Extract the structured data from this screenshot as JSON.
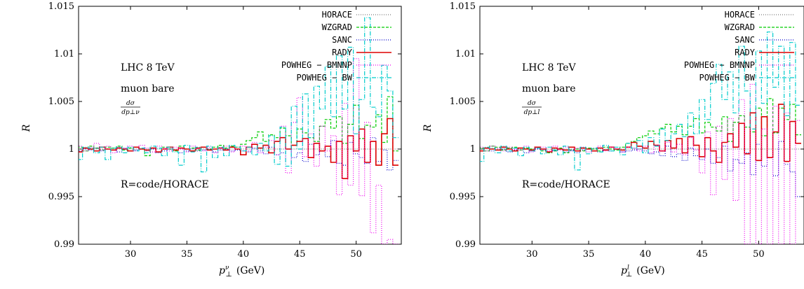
{
  "chart_data": [
    {
      "type": "line",
      "step": true,
      "xlabel": "p⊥ν (GeV)",
      "xlabel_main": "p",
      "xlabel_sub": "⊥",
      "xlabel_sup": "ν",
      "xlabel_unit": "(GeV)",
      "ylabel": "R",
      "xlim": [
        25.4,
        54
      ],
      "ylim": [
        0.99,
        1.015
      ],
      "xticks": [
        30,
        35,
        40,
        45,
        50
      ],
      "yticks": [
        0.99,
        0.995,
        1,
        1.005,
        1.01,
        1.015
      ],
      "ytick_labels": [
        "0.99",
        "0.995",
        "1",
        "1.005",
        "1.01",
        "1.015"
      ],
      "legend_position": "top-right",
      "annotations": {
        "line1": "LHC 8 TeV",
        "line2": "muon bare",
        "frac_num": "dσ",
        "frac_den": "dp⊥ν",
        "ratio": "R=code/HORACE"
      },
      "x": [
        25.5,
        26,
        26.5,
        27,
        27.5,
        28,
        28.5,
        29,
        29.5,
        30,
        30.5,
        31,
        31.5,
        32,
        32.5,
        33,
        33.5,
        34,
        34.5,
        35,
        35.5,
        36,
        36.5,
        37,
        37.5,
        38,
        38.5,
        39,
        39.5,
        40,
        40.5,
        41,
        41.5,
        42,
        42.5,
        43,
        43.5,
        44,
        44.5,
        45,
        45.5,
        46,
        46.5,
        47,
        47.5,
        48,
        48.5,
        49,
        49.5,
        50,
        50.5,
        51,
        51.5,
        52,
        52.5,
        53,
        53.5
      ],
      "series": [
        {
          "name": "HORACE",
          "color": "#7a7a7a",
          "dash": "1,2",
          "values": [
            1,
            1,
            1,
            1,
            1,
            1,
            1,
            1,
            1,
            1,
            1,
            1,
            1,
            1,
            1,
            1,
            1,
            1,
            1,
            1,
            1,
            1,
            1,
            1,
            1,
            1,
            1,
            1,
            1,
            1,
            1,
            1,
            1,
            1,
            1,
            1,
            1,
            1,
            1,
            1,
            1,
            1,
            1,
            1,
            1,
            1,
            1,
            1,
            1,
            1,
            1,
            1,
            1,
            1,
            1,
            1,
            1
          ]
        },
        {
          "name": "WZGRAD",
          "color": "#00cc00",
          "dash": "4,2",
          "values": [
            1.0002,
            0.9998,
            1.0003,
            1.0001,
            0.9999,
            1.0002,
            1.0001,
            1.0003,
            0.9999,
            1.0001,
            1.0002,
            1.0,
            0.9993,
            1.0001,
            0.9997,
            1.0002,
            1.0,
            0.9998,
            1.0003,
            1.0,
            1.0001,
            0.9999,
            1.0002,
            1.0,
            1.0002,
            1.0004,
            1.0001,
            1.0003,
            1.0002,
            1.0005,
            1.0009,
            1.0012,
            1.0018,
            1.0008,
            1.0015,
            1.0012,
            1.0022,
            1.0014,
            1.0004,
            1.0021,
            1.0017,
            1.0012,
            1.0008,
            1.0024,
            1.0031,
            1.0022,
            1.0034,
            1.0006,
            1.0026,
            1.0046,
            1.0011,
            1.0025,
            1.0023,
            1.0036,
            1.0007,
            1.0055,
            0.9998
          ]
        },
        {
          "name": "SANC",
          "color": "#0000cc",
          "dash": "1,2",
          "values": [
            0.9998,
            1.0,
            0.9999,
            1.0001,
            0.9998,
            1.0,
            0.9999,
            0.9997,
            1.0001,
            0.9998,
            0.9999,
            1.0,
            0.9998,
            1.0,
            0.9996,
            0.9998,
            1.0,
            0.9999,
            0.9996,
            0.9998,
            1.0,
            0.9998,
            0.9999,
            1.0,
            0.9997,
            0.9999,
            1.0,
            0.9998,
            0.9999,
            0.9998,
            0.9997,
            1.0001,
            0.9998,
            0.9995,
            1.0002,
            0.9994,
            0.9996,
            1.0,
            0.9991,
            0.9996,
            0.9987,
            1.0005,
            0.9994,
            0.9998,
            0.9992,
            1.0009,
            0.9985,
            0.9983,
            1.0007,
            0.9995,
            0.9991,
            0.9985,
            1.0012,
            0.9987,
            0.9999,
            0.9978,
            0.9988
          ]
        },
        {
          "name": "RADY",
          "color": "#dd0000",
          "dash": "",
          "values": [
            0.9997,
            1.0001,
            1.0,
            0.9998,
            1.0002,
            1.0,
            0.9999,
            1.0001,
            1.0,
            0.9998,
            1.0002,
            1.0,
            0.9999,
            1.0001,
            0.9997,
            1.0,
            1.0002,
            0.9999,
            1.0001,
            1.0,
            0.9998,
            1.0001,
            1.0002,
            0.9999,
            1.0,
            1.0001,
            0.9999,
            1.0002,
            1.0,
            0.9994,
            1.0002,
            1.0005,
            1.0001,
            1.0004,
            0.9996,
            1.0008,
            1.0012,
            1.0,
            1.0004,
            1.0008,
            1.0011,
            0.9991,
            1.0006,
            0.9998,
            1.0003,
            0.9986,
            1.0008,
            0.9969,
            1.0014,
            0.9998,
            1.0021,
            0.9986,
            1.0008,
            0.9983,
            1.0016,
            1.0032,
            0.9983
          ]
        },
        {
          "name": "POWHEG − BMNNP",
          "color": "#ee00ee",
          "dash": "1,2",
          "values": [
            1.0003,
            0.9998,
            1.0002,
            1.0006,
            0.9999,
            1.0003,
            0.9996,
            1.0002,
            1.0,
            1.0003,
            0.9998,
            1.0004,
            1.0001,
            0.9997,
            1.0003,
            1.0001,
            0.9998,
            1.0002,
            1.0,
            0.9997,
            1.0003,
            1.0,
            0.9998,
            1.0002,
            0.9996,
            1.0001,
            1.0003,
            0.9997,
            1.0002,
            1.0003,
            0.9998,
            1.0007,
            0.9996,
            1.0002,
            1.0009,
            0.9994,
            1.0024,
            0.9975,
            1.0028,
            1.0054,
            0.9992,
            1.0016,
            0.9982,
            1.0024,
            0.9998,
            1.0014,
            0.9952,
            1.0048,
            0.9962,
            1.0095,
            0.9951,
            1.0028,
            0.9912,
            0.9962,
            0.99,
            0.9905,
            0.99
          ]
        },
        {
          "name": "POWHEG − BW",
          "color": "#00cccc",
          "dash": "6,2,1,2",
          "values": [
            0.9989,
            1.0002,
            1.0001,
            0.9996,
            1.0002,
            0.9989,
            1.0001,
            1.0002,
            0.9996,
            1.0002,
            0.9998,
            1.0001,
            0.9996,
            1.0003,
            1.0001,
            0.9993,
            1.0002,
            0.9997,
            0.9983,
            1.0004,
            0.9997,
            1.0002,
            0.9976,
            1.0003,
            0.9991,
            1.0002,
            0.9993,
            1.0004,
            1.0002,
            0.9998,
            1.0002,
            0.9994,
            1.0006,
            0.9998,
            1.0014,
            0.9984,
            1.0023,
            0.9982,
            1.0045,
            1.0,
            1.0058,
            1.0012,
            1.0066,
            1.0042,
            1.0087,
            1.0034,
            1.0098,
            1.0042,
            1.0107,
            1.0016,
            1.0052,
            1.0138,
            1.0044,
            1.0034,
            1.0088,
            1.0061,
            1.0012
          ]
        }
      ]
    },
    {
      "type": "line",
      "step": true,
      "xlabel": "p⊥l (GeV)",
      "xlabel_main": "p",
      "xlabel_sub": "⊥",
      "xlabel_sup": "l",
      "xlabel_unit": "(GeV)",
      "ylabel": "R",
      "xlim": [
        25.4,
        54
      ],
      "ylim": [
        0.99,
        1.015
      ],
      "xticks": [
        30,
        35,
        40,
        45,
        50
      ],
      "yticks": [
        0.99,
        0.995,
        1,
        1.005,
        1.01,
        1.015
      ],
      "ytick_labels": [
        "0.99",
        "0.995",
        "1",
        "1.005",
        "1.01",
        "1.015"
      ],
      "legend_position": "top-right",
      "annotations": {
        "line1": "LHC 8 TeV",
        "line2": "muon bare",
        "frac_num": "dσ",
        "frac_den": "dp⊥l",
        "ratio": "R=code/HORACE"
      },
      "x": [
        25.5,
        26,
        26.5,
        27,
        27.5,
        28,
        28.5,
        29,
        29.5,
        30,
        30.5,
        31,
        31.5,
        32,
        32.5,
        33,
        33.5,
        34,
        34.5,
        35,
        35.5,
        36,
        36.5,
        37,
        37.5,
        38,
        38.5,
        39,
        39.5,
        40,
        40.5,
        41,
        41.5,
        42,
        42.5,
        43,
        43.5,
        44,
        44.5,
        45,
        45.5,
        46,
        46.5,
        47,
        47.5,
        48,
        48.5,
        49,
        49.5,
        50,
        50.5,
        51,
        51.5,
        52,
        52.5,
        53,
        53.5
      ],
      "series": [
        {
          "name": "HORACE",
          "color": "#7a7a7a",
          "dash": "1,2",
          "values": [
            1,
            1,
            1,
            1,
            1,
            1,
            1,
            1,
            1,
            1,
            1,
            1,
            1,
            1,
            1,
            1,
            1,
            1,
            1,
            1,
            1,
            1,
            1,
            1,
            1,
            1,
            1,
            1,
            1,
            1,
            1,
            1,
            1,
            1,
            1,
            1,
            1,
            1,
            1,
            1,
            1,
            1,
            1,
            1,
            1,
            1,
            1,
            1,
            1,
            1,
            1,
            1,
            1,
            1,
            1,
            1,
            1
          ]
        },
        {
          "name": "WZGRAD",
          "color": "#00cc00",
          "dash": "4,2",
          "values": [
            1.0001,
            0.9998,
            1.0003,
            1.0002,
            0.9999,
            1.0001,
            1.0002,
            0.9999,
            1.0001,
            1.0,
            1.0002,
            0.9998,
            0.9996,
            0.9998,
            1.0001,
            0.9996,
            0.9999,
            1.0,
            0.9998,
            1.0001,
            1.0,
            0.9998,
            1.0002,
            1.0,
            0.9999,
            1.0002,
            1.0006,
            1.0008,
            1.0012,
            1.0014,
            1.0019,
            1.0016,
            1.0022,
            1.0026,
            1.0018,
            1.0024,
            1.0015,
            1.0024,
            1.0032,
            1.0017,
            1.0028,
            1.0023,
            1.0019,
            1.0034,
            1.0008,
            1.0028,
            1.0035,
            1.0023,
            1.0018,
            1.0043,
            1.0014,
            1.0053,
            1.0017,
            1.0043,
            1.0031,
            1.0047,
            1.0015
          ]
        },
        {
          "name": "SANC",
          "color": "#0000cc",
          "dash": "1,2",
          "values": [
            0.9998,
            1.0001,
            0.9998,
            0.9999,
            1.0,
            0.9997,
            0.9999,
            1.0001,
            0.9996,
            0.9998,
            1.0,
            0.9999,
            0.9997,
            0.9998,
            1.0,
            0.9997,
            0.9999,
            0.9996,
            0.9999,
            1.0,
            0.9998,
            0.9997,
            0.9999,
            0.9998,
            1.0,
            0.9997,
            0.9998,
            0.9999,
            1.0,
            0.9998,
            0.9995,
            0.9997,
            0.9993,
            1.0003,
            0.9992,
            0.9995,
            0.9988,
            1.0001,
            0.9993,
            0.9989,
            1.0,
            0.9985,
            0.9991,
            1.0003,
            0.9977,
            0.9989,
            0.9985,
            0.9996,
            0.9973,
            1.0005,
            0.9982,
            0.9991,
            0.9972,
            1.0008,
            0.9984,
            0.9976,
            0.995
          ]
        },
        {
          "name": "RADY",
          "color": "#dd0000",
          "dash": "",
          "values": [
            0.9998,
            1.0001,
            1.0,
            0.9999,
            1.0002,
            1.0,
            0.9998,
            1.0001,
            1.0,
            0.9999,
            1.0002,
            1.0,
            0.9997,
            1.0001,
            1.0,
            0.9999,
            1.0002,
            0.9998,
            1.0001,
            1.0,
            0.9998,
            1.0001,
            0.9999,
            1.0002,
            1.0,
            0.9999,
            1.0002,
            1.0007,
            1.0003,
            1.0001,
            1.0008,
            1.0004,
            0.9998,
            1.0009,
            1.0001,
            1.0011,
            0.9996,
            1.0013,
            1.0004,
            0.9992,
            1.0012,
            0.9998,
            0.9986,
            1.0007,
            1.0016,
            1.0002,
            1.0027,
            0.9995,
            1.0038,
            0.9988,
            1.0034,
            0.9991,
            1.0018,
            1.0047,
            0.9987,
            1.0029,
            1.0006
          ]
        },
        {
          "name": "POWHEG − BMNNP",
          "color": "#ee00ee",
          "dash": "1,2",
          "values": [
            1.0002,
            0.9998,
            1.0003,
            1.0001,
            0.9998,
            1.0002,
            1.0,
            0.9999,
            1.0003,
            0.9997,
            1.0001,
            1.0002,
            0.9998,
            1.0003,
            0.9999,
            1.0002,
            0.9998,
            1.0001,
            1.0002,
            0.9997,
            1.0001,
            1.0003,
            0.9998,
            1.0002,
            1.0,
            0.9997,
            1.0002,
            1.0001,
            0.9998,
            1.0003,
            0.9996,
            1.0004,
            0.9998,
            1.0007,
            0.9997,
            1.0005,
            0.9994,
            1.0012,
            0.9999,
            0.9975,
            1.0018,
            0.9952,
            1.0024,
            0.9968,
            1.0032,
            0.9946,
            1.0052,
            0.99,
            1.0068,
            0.99,
            1.0021,
            0.99,
            1.0045,
            0.99,
            1.0038,
            0.99,
            1.003
          ]
        },
        {
          "name": "POWHEG − BW",
          "color": "#00cccc",
          "dash": "6,2,1,2",
          "values": [
            0.9987,
            1.0002,
            1.0001,
            0.9996,
            1.0003,
            0.9998,
            1.0001,
            0.9993,
            1.0002,
            0.9998,
            1.0001,
            0.9995,
            1.0002,
            0.9999,
            0.9994,
            1.0003,
            0.9998,
            0.9978,
            1.0002,
            0.9995,
            1.0001,
            0.9997,
            1.0004,
            0.9998,
            1.0002,
            0.9994,
            1.0006,
            1.0001,
            1.0009,
            0.9996,
            1.0012,
            1.0003,
            1.0021,
            1.0009,
            1.0016,
            1.0026,
            1.0013,
            1.0038,
            1.0016,
            1.0052,
            1.0031,
            1.0069,
            1.0089,
            1.0052,
            1.0081,
            1.0038,
            1.0108,
            1.0061,
            1.0021,
            1.0103,
            1.0048,
            1.0123,
            1.0065,
            1.0108,
            1.0035,
            1.0112,
            1.0046
          ]
        }
      ]
    }
  ]
}
